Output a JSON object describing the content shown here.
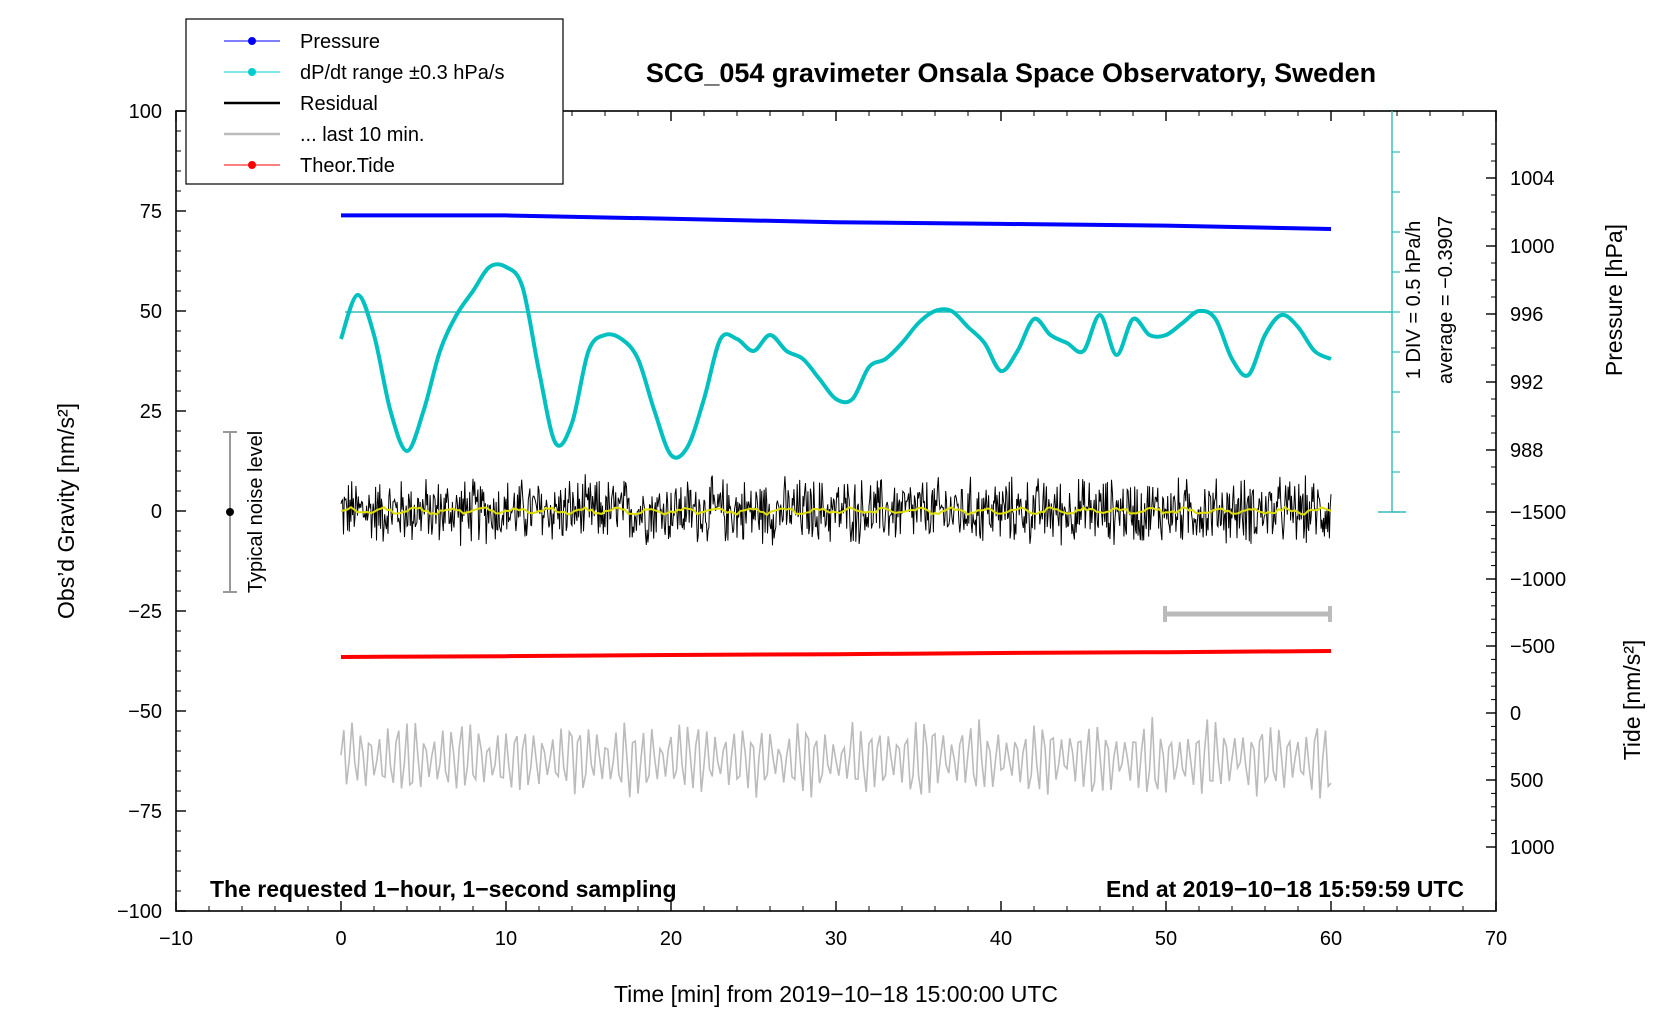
{
  "chart_data": {
    "type": "line",
    "title": "SCG_054 gravimeter Onsala Space Observatory, Sweden",
    "xlabel": "Time [min] from 2019−10−18 15:00:00 UTC",
    "ylabel_left": "Obs’d Gravity [nm/s²]",
    "ylabel_right_top": "Pressure [hPa]",
    "ylabel_right_bottom": "Tide [nm/s²]",
    "xlim": [
      -10,
      70
    ],
    "ylim_left": [
      -100,
      100
    ],
    "x_ticks": [
      "−10",
      "0",
      "10",
      "20",
      "30",
      "40",
      "50",
      "60",
      "70"
    ],
    "x_tick_values": [
      -10,
      0,
      10,
      20,
      30,
      40,
      50,
      60,
      70
    ],
    "y_ticks_left": [
      "100",
      "75",
      "50",
      "25",
      "0",
      "−25",
      "−50",
      "−75",
      "−100"
    ],
    "y_tick_values_left": [
      100,
      75,
      50,
      25,
      0,
      -25,
      -50,
      -75,
      -100
    ],
    "pressure_axis": {
      "ticks": [
        "1004",
        "1000",
        "996",
        "992",
        "988"
      ],
      "tick_values": [
        1004,
        1000,
        996,
        992,
        988
      ],
      "range": [
        984,
        1008
      ]
    },
    "tide_axis": {
      "ticks": [
        "1000",
        "500",
        "0",
        "−500",
        "−1000",
        "−1500"
      ],
      "tick_values": [
        1000,
        500,
        0,
        -500,
        -1000,
        -1500
      ],
      "range": [
        -1500,
        1000
      ]
    },
    "legend_position": "top-left",
    "legend": [
      {
        "label": "Pressure",
        "color": "#0000ff",
        "marker": true
      },
      {
        "label": "dP/dt range ±0.3 hPa/s",
        "color": "#00cccc",
        "marker": true
      },
      {
        "label": "Residual",
        "color": "#000000",
        "marker": false
      },
      {
        "label": "... last 10 min.",
        "color": "#bbbbbb",
        "marker": false
      },
      {
        "label": "Theor.Tide",
        "color": "#ff0000",
        "marker": true
      }
    ],
    "series": [
      {
        "name": "Pressure",
        "color": "#0000ff",
        "axis": "pressure",
        "x": [
          0,
          10,
          20,
          30,
          40,
          50,
          60
        ],
        "y": [
          1001.8,
          1001.8,
          1001.6,
          1001.4,
          1001.3,
          1001.2,
          1001.0
        ]
      },
      {
        "name": "dP/dt range ±0.3 hPa/s",
        "color": "#00c0c0",
        "axis": "left",
        "x": [
          0,
          1,
          2,
          3,
          4,
          5,
          6,
          7,
          8,
          9,
          10,
          11,
          12,
          13,
          14,
          15,
          16,
          17,
          18,
          19,
          20,
          21,
          22,
          23,
          24,
          25,
          26,
          27,
          28,
          29,
          30,
          31,
          32,
          33,
          34,
          35,
          36,
          37,
          38,
          39,
          40,
          41,
          42,
          43,
          44,
          45,
          46,
          47,
          48,
          49,
          50,
          51,
          52,
          53,
          54,
          55,
          56,
          57,
          58,
          59,
          60
        ],
        "y": [
          43,
          54,
          44,
          25,
          15,
          25,
          40,
          49,
          55,
          61,
          61,
          56,
          35,
          17,
          22,
          40,
          44,
          43,
          38,
          25,
          14,
          16,
          28,
          43,
          43,
          40,
          44,
          40,
          38,
          33,
          28,
          28,
          36,
          38,
          42,
          47,
          50,
          50,
          46,
          42,
          35,
          40,
          48,
          44,
          42,
          40,
          49,
          39,
          48,
          44,
          44,
          47,
          50,
          48,
          38,
          34,
          44,
          49,
          46,
          40,
          38
        ]
      },
      {
        "name": "Residual",
        "color": "#000000",
        "axis": "left",
        "noise_amplitude": 8
      },
      {
        "name": "... last 10 min.",
        "color": "#bbbbbb",
        "axis": "left",
        "offset": -62
      },
      {
        "name": "Theor.Tide",
        "color": "#ff0000",
        "axis": "left",
        "x": [
          0,
          10,
          20,
          30,
          40,
          50,
          60
        ],
        "y": [
          -36.5,
          -36.3,
          -36.0,
          -35.8,
          -35.5,
          -35.3,
          -35.0
        ]
      }
    ],
    "annotations": {
      "dpdt_scale_1": "1 DIV = 0.5 hPa/h",
      "dpdt_scale_2": "average = −0.3907",
      "noise_level": "Typical noise level",
      "note_left": "The requested 1−hour, 1−second sampling",
      "note_right": "End at 2019−10−18 15:59:59 UTC"
    }
  }
}
